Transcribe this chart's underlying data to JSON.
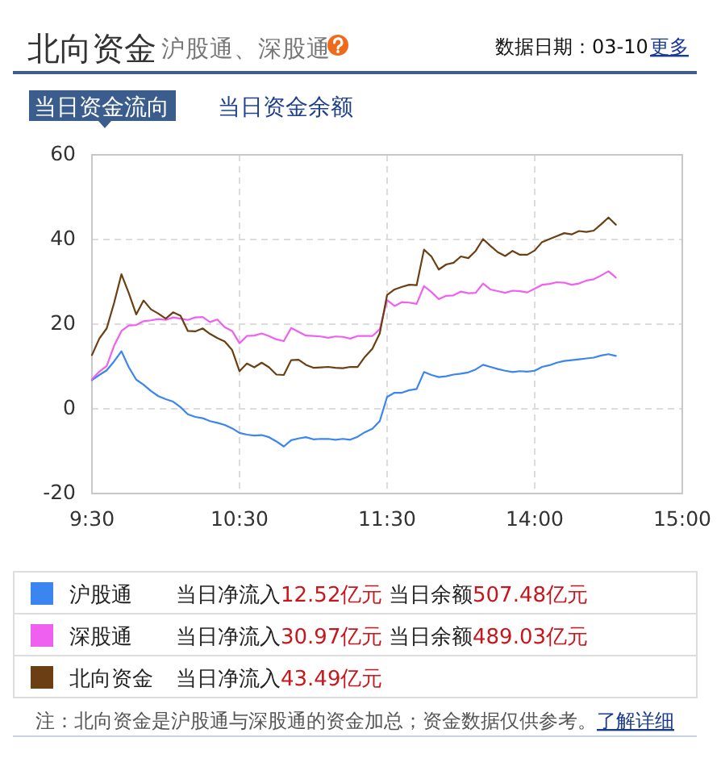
{
  "chart_data": {
    "type": "line",
    "title": "北向资金",
    "subtitle": "沪股通、深股通",
    "categories": [
      "9:30",
      null,
      null,
      null,
      null,
      null,
      null,
      null,
      null,
      null,
      null,
      null,
      null,
      null,
      null,
      null,
      null,
      null,
      null,
      null,
      "10:30",
      null,
      null,
      null,
      null,
      null,
      null,
      null,
      null,
      null,
      null,
      null,
      null,
      null,
      null,
      null,
      null,
      null,
      null,
      null,
      "11:30",
      null,
      null,
      null,
      null,
      null,
      null,
      null,
      null,
      null,
      null,
      null,
      null,
      null,
      null,
      null,
      null,
      null,
      null,
      null,
      "14:00",
      null,
      null,
      null,
      null,
      null,
      null,
      null,
      null,
      null,
      null,
      null,
      null,
      null,
      null,
      null,
      null,
      null,
      null,
      null,
      "15:00"
    ],
    "ylim": [
      -20,
      60
    ],
    "yticks": [
      -20,
      0,
      20,
      40,
      60
    ],
    "grid": true,
    "legend": "bottom",
    "series": [
      {
        "name": "沪股通",
        "color": "#3a85f0",
        "values": [
          6.8,
          8.0,
          9.1,
          11.2,
          13.6,
          9.8,
          6.9,
          5.7,
          4.2,
          3.0,
          2.3,
          1.7,
          0.4,
          -1.3,
          -1.9,
          -2.2,
          -2.9,
          -3.3,
          -3.8,
          -4.6,
          -5.7,
          -6.1,
          -6.3,
          -6.2,
          -6.7,
          -7.7,
          -8.9,
          -7.4,
          -7.0,
          -6.7,
          -7.2,
          -7.1,
          -7.1,
          -7.3,
          -7.1,
          -7.3,
          -6.6,
          -5.5,
          -4.7,
          -2.9,
          2.8,
          3.8,
          3.8,
          4.4,
          4.7,
          8.7,
          8.0,
          7.5,
          7.7,
          8.1,
          8.3,
          8.6,
          9.3,
          10.4,
          9.9,
          9.4,
          9.0,
          8.7,
          8.9,
          8.8,
          9.0,
          9.9,
          10.3,
          10.9,
          11.3,
          11.5,
          11.7,
          11.9,
          12.1,
          12.6,
          12.9,
          12.5,
          null,
          null,
          null,
          null,
          null,
          null,
          null,
          null,
          null
        ]
      },
      {
        "name": "深股通",
        "color": "#f060f0",
        "values": [
          7.0,
          8.8,
          10.1,
          14.9,
          18.4,
          19.7,
          19.8,
          20.7,
          20.9,
          21.2,
          21.0,
          21.6,
          21.3,
          21.0,
          21.6,
          21.7,
          20.5,
          21.1,
          19.3,
          18.4,
          15.5,
          17.2,
          17.3,
          17.8,
          17.2,
          16.4,
          16.0,
          19.1,
          18.2,
          17.3,
          17.2,
          17.1,
          16.8,
          17.1,
          17.0,
          16.6,
          17.2,
          17.2,
          17.2,
          18.8,
          25.7,
          24.3,
          25.2,
          25.1,
          24.8,
          29.0,
          27.6,
          25.9,
          26.7,
          26.8,
          27.7,
          27.3,
          27.4,
          29.6,
          28.2,
          27.8,
          27.4,
          27.9,
          27.8,
          27.5,
          28.4,
          29.3,
          29.5,
          29.9,
          29.8,
          29.3,
          29.6,
          30.3,
          30.6,
          31.5,
          32.5,
          31.0,
          null,
          null,
          null,
          null,
          null,
          null,
          null,
          null,
          null
        ]
      },
      {
        "name": "北向资金",
        "color": "#6b3f14",
        "values": [
          12.7,
          16.6,
          19.0,
          25.0,
          31.8,
          27.3,
          22.3,
          25.6,
          23.5,
          22.5,
          21.3,
          22.8,
          22.0,
          18.4,
          18.3,
          19.0,
          17.7,
          16.7,
          15.9,
          13.9,
          8.9,
          10.7,
          9.8,
          10.9,
          9.8,
          8.1,
          8.0,
          11.5,
          11.6,
          10.4,
          9.7,
          9.8,
          9.9,
          9.7,
          9.6,
          9.9,
          9.9,
          12.3,
          14.2,
          17.8,
          26.9,
          28.2,
          28.8,
          29.3,
          29.2,
          37.6,
          36.0,
          32.9,
          34.1,
          34.5,
          36.0,
          35.6,
          37.3,
          40.1,
          38.5,
          37.0,
          36.1,
          37.3,
          36.4,
          36.4,
          37.4,
          39.4,
          40.1,
          40.8,
          41.5,
          41.2,
          42.0,
          41.8,
          42.1,
          43.6,
          45.2,
          43.5,
          null,
          null,
          null,
          null,
          null,
          null,
          null,
          null,
          null
        ]
      }
    ],
    "annotations": [
      "数据日期：03-10",
      "更多",
      "当日资金流向",
      "当日资金余额",
      "当日净流入12.52亿元",
      "当日余额507.48亿元",
      "当日净流入30.97亿元",
      "当日余额489.03亿元",
      "当日净流入43.49亿元",
      "注：北向资金是沪股通与深股通的资金加总；资金数据仅供参考。",
      "了解详细"
    ]
  }
}
